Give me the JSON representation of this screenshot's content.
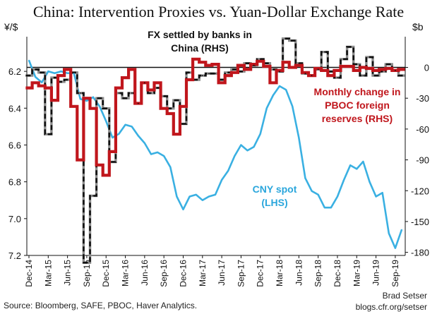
{
  "chart_data": {
    "type": "line",
    "title": "China: Intervention Proxies vs. Yuan-Dollar Exchange Rate",
    "left_axis_unit": "¥/$",
    "right_axis_unit": "$b",
    "left_ylim": [
      7.2,
      6.05
    ],
    "right_ylim": [
      -183,
      23
    ],
    "left_ticks": [
      "6.2",
      "6.4",
      "6.6",
      "6.8",
      "7.0",
      "7.2"
    ],
    "left_tick_values": [
      6.2,
      6.4,
      6.6,
      6.8,
      7.0,
      7.2
    ],
    "right_ticks": [
      "0",
      "-30",
      "-60",
      "-90",
      "-120",
      "-150",
      "-180"
    ],
    "right_tick_values": [
      0,
      -30,
      -60,
      -90,
      -120,
      -150,
      -180
    ],
    "x_ticks": [
      "Dec-14",
      "Mar-15",
      "Jun-15",
      "Sep-15",
      "Dec-15",
      "Mar-16",
      "Jun-16",
      "Sep-16",
      "Dec-16",
      "Mar-17",
      "Jun-17",
      "Sep-17",
      "Dec-17",
      "Mar-18",
      "Jun-18",
      "Sep-18",
      "Dec-18",
      "Mar-19",
      "Jun-19",
      "Sep-19"
    ],
    "months": [
      "Dec-14",
      "Jan-15",
      "Feb-15",
      "Mar-15",
      "Apr-15",
      "May-15",
      "Jun-15",
      "Jul-15",
      "Aug-15",
      "Sep-15",
      "Oct-15",
      "Nov-15",
      "Dec-15",
      "Jan-16",
      "Feb-16",
      "Mar-16",
      "Apr-16",
      "May-16",
      "Jun-16",
      "Jul-16",
      "Aug-16",
      "Sep-16",
      "Oct-16",
      "Nov-16",
      "Dec-16",
      "Jan-17",
      "Feb-17",
      "Mar-17",
      "Apr-17",
      "May-17",
      "Jun-17",
      "Jul-17",
      "Aug-17",
      "Sep-17",
      "Oct-17",
      "Nov-17",
      "Dec-17",
      "Jan-18",
      "Feb-18",
      "Mar-18",
      "Apr-18",
      "May-18",
      "Jun-18",
      "Jul-18",
      "Aug-18",
      "Sep-18",
      "Oct-18",
      "Nov-18",
      "Dec-18",
      "Jan-19",
      "Feb-19",
      "Mar-19",
      "Apr-19",
      "May-19",
      "Jun-19",
      "Jul-19",
      "Aug-19",
      "Sep-19",
      "Oct-19"
    ],
    "series": [
      {
        "name": "FX settled by banks in China (RHS)",
        "axis": "right",
        "style": "dashed-black-over-gray",
        "color": "#111111",
        "shadow_color": "#8c8c8c",
        "values": [
          -8,
          -2,
          -5,
          -65,
          -10,
          -14,
          -12,
          -5,
          -25,
          -190,
          -125,
          -30,
          -40,
          -92,
          -25,
          -30,
          -25,
          -35,
          -15,
          -25,
          -20,
          -28,
          -40,
          -32,
          -55,
          -5,
          -12,
          -8,
          -6,
          -6,
          -12,
          -5,
          -2,
          -4,
          4,
          2,
          8,
          4,
          -2,
          -4,
          28,
          26,
          4,
          -6,
          -8,
          -2,
          15,
          -4,
          -10,
          8,
          20,
          3,
          -8,
          10,
          -8,
          -4,
          3,
          -3,
          -8
        ]
      },
      {
        "name": "Monthly change in PBOC foreign reserves (RHS)",
        "axis": "right",
        "style": "step",
        "color": "#c0161c",
        "values": [
          -20,
          -15,
          -18,
          -20,
          -32,
          -8,
          -2,
          -38,
          -90,
          -30,
          -40,
          -95,
          -105,
          -82,
          -20,
          -10,
          -2,
          -35,
          -15,
          -22,
          -15,
          -40,
          -45,
          -65,
          -38,
          -12,
          8,
          5,
          2,
          3,
          -15,
          -8,
          -5,
          2,
          -2,
          3,
          6,
          1,
          -15,
          -3,
          5,
          0,
          2,
          -5,
          -8,
          -1,
          -3,
          -8,
          -3,
          1,
          1,
          -3,
          0,
          -1,
          -3,
          -2,
          -1,
          -3,
          -2
        ]
      },
      {
        "name": "CNY spot (LHS)",
        "axis": "left",
        "style": "solid",
        "color": "#3ab0e2",
        "values": [
          6.14,
          6.23,
          6.26,
          6.2,
          6.21,
          6.2,
          6.21,
          6.21,
          6.35,
          6.36,
          6.34,
          6.39,
          6.47,
          6.56,
          6.54,
          6.49,
          6.5,
          6.55,
          6.59,
          6.65,
          6.64,
          6.66,
          6.72,
          6.88,
          6.95,
          6.88,
          6.87,
          6.9,
          6.88,
          6.87,
          6.79,
          6.74,
          6.66,
          6.6,
          6.63,
          6.61,
          6.54,
          6.4,
          6.33,
          6.28,
          6.3,
          6.39,
          6.56,
          6.78,
          6.85,
          6.87,
          6.94,
          6.94,
          6.88,
          6.79,
          6.71,
          6.73,
          6.69,
          6.8,
          6.88,
          6.86,
          7.08,
          7.16,
          7.06
        ]
      }
    ],
    "labels": {
      "fx_settled": [
        "FX settled by banks in",
        "China (RHS)"
      ],
      "pboc": [
        "Monthly change in",
        "PBOC foreign",
        "reserves (RHS)"
      ],
      "cny": [
        "CNY spot",
        "(LHS)"
      ]
    },
    "grid": false,
    "legend": "inline labels"
  },
  "footer": {
    "source": "Source: Bloomberg, SAFE, PBOC, Haver Analytics.",
    "author": "Brad Setser",
    "site": "blogs.cfr.org/setser"
  }
}
